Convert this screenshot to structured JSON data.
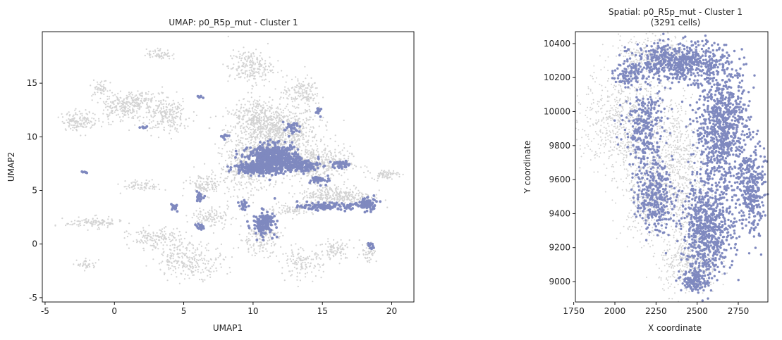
{
  "chart_data": [
    {
      "type": "scatter",
      "title": "UMAP: p0_R5p_mut - Cluster 1",
      "xlabel": "UMAP1",
      "ylabel": "UMAP2",
      "xlim": [
        -5.2,
        21.6
      ],
      "ylim": [
        -5.4,
        19.8
      ],
      "xticks": [
        -5,
        0,
        5,
        10,
        15,
        20
      ],
      "yticks": [
        -5,
        0,
        5,
        10,
        15
      ],
      "grid": false,
      "background_color": "#d3d3d3",
      "highlight_color": "#7f89bf",
      "series": [
        {
          "role": "background",
          "regions": [
            {
              "x": 11.5,
              "y": 10.5,
              "rx": 3.2,
              "ry": 2.6,
              "n": 900
            },
            {
              "x": 9.5,
              "y": 7.0,
              "rx": 2.0,
              "ry": 2.4,
              "n": 320
            },
            {
              "x": 14.5,
              "y": 7.5,
              "rx": 2.5,
              "ry": 1.6,
              "n": 380
            },
            {
              "x": 16.0,
              "y": 4.5,
              "rx": 2.6,
              "ry": 1.0,
              "n": 320
            },
            {
              "x": 19.5,
              "y": 6.5,
              "rx": 1.0,
              "ry": 0.4,
              "n": 70
            },
            {
              "x": 9.8,
              "y": 16.5,
              "rx": 1.6,
              "ry": 1.6,
              "n": 220
            },
            {
              "x": 13.5,
              "y": 14.2,
              "rx": 1.3,
              "ry": 1.3,
              "n": 140
            },
            {
              "x": 3.2,
              "y": 17.7,
              "rx": 0.9,
              "ry": 0.5,
              "n": 60
            },
            {
              "x": -2.5,
              "y": 11.5,
              "rx": 1.3,
              "ry": 0.9,
              "n": 150
            },
            {
              "x": 0.6,
              "y": 12.8,
              "rx": 1.5,
              "ry": 1.4,
              "n": 220
            },
            {
              "x": 3.8,
              "y": 12.0,
              "rx": 1.7,
              "ry": 1.6,
              "n": 230
            },
            {
              "x": 2.0,
              "y": 13.5,
              "rx": 1.2,
              "ry": 0.6,
              "n": 80
            },
            {
              "x": -1.0,
              "y": 14.5,
              "rx": 0.6,
              "ry": 0.8,
              "n": 50
            },
            {
              "x": 6.5,
              "y": 5.5,
              "rx": 1.3,
              "ry": 1.0,
              "n": 120
            },
            {
              "x": 2.0,
              "y": 5.4,
              "rx": 1.4,
              "ry": 0.5,
              "n": 70
            },
            {
              "x": -1.5,
              "y": 2.0,
              "rx": 2.0,
              "ry": 0.5,
              "n": 110
            },
            {
              "x": 3.0,
              "y": 0.5,
              "rx": 2.0,
              "ry": 1.0,
              "n": 160
            },
            {
              "x": 5.5,
              "y": -1.5,
              "rx": 2.5,
              "ry": 1.6,
              "n": 260
            },
            {
              "x": 7.0,
              "y": 2.5,
              "rx": 1.5,
              "ry": 1.0,
              "n": 110
            },
            {
              "x": 10.5,
              "y": 0.5,
              "rx": 1.5,
              "ry": 1.5,
              "n": 160
            },
            {
              "x": 13.5,
              "y": -1.8,
              "rx": 1.5,
              "ry": 1.3,
              "n": 130
            },
            {
              "x": 16.0,
              "y": -0.5,
              "rx": 1.2,
              "ry": 1.0,
              "n": 90
            },
            {
              "x": 18.3,
              "y": -0.7,
              "rx": 0.6,
              "ry": 1.0,
              "n": 50
            },
            {
              "x": 12.8,
              "y": 3.2,
              "rx": 1.7,
              "ry": 0.5,
              "n": 80
            },
            {
              "x": -2.0,
              "y": -1.9,
              "rx": 0.7,
              "ry": 0.5,
              "n": 40
            },
            {
              "x": 10.0,
              "y": 12.0,
              "rx": 1.3,
              "ry": 1.6,
              "n": 150
            }
          ]
        },
        {
          "role": "highlight",
          "regions": [
            {
              "x": 11.5,
              "y": 7.9,
              "rx": 1.8,
              "ry": 1.3,
              "n": 650
            },
            {
              "x": 9.8,
              "y": 7.1,
              "rx": 1.2,
              "ry": 0.5,
              "n": 120
            },
            {
              "x": 13.6,
              "y": 7.3,
              "rx": 1.2,
              "ry": 0.6,
              "n": 110
            },
            {
              "x": 16.3,
              "y": 7.4,
              "rx": 0.6,
              "ry": 0.4,
              "n": 40
            },
            {
              "x": 15.0,
              "y": 6.0,
              "rx": 0.8,
              "ry": 0.4,
              "n": 40
            },
            {
              "x": 15.3,
              "y": 3.5,
              "rx": 1.8,
              "ry": 0.3,
              "n": 130
            },
            {
              "x": 18.2,
              "y": 3.7,
              "rx": 0.7,
              "ry": 0.6,
              "n": 90
            },
            {
              "x": 10.8,
              "y": 1.9,
              "rx": 0.8,
              "ry": 1.1,
              "n": 150
            },
            {
              "x": 9.3,
              "y": 3.6,
              "rx": 0.3,
              "ry": 0.5,
              "n": 25
            },
            {
              "x": 6.1,
              "y": 4.4,
              "rx": 0.3,
              "ry": 0.4,
              "n": 20
            },
            {
              "x": 6.2,
              "y": 1.6,
              "rx": 0.3,
              "ry": 0.3,
              "n": 16
            },
            {
              "x": 4.3,
              "y": 3.5,
              "rx": 0.3,
              "ry": 0.4,
              "n": 18
            },
            {
              "x": 14.7,
              "y": 12.3,
              "rx": 0.3,
              "ry": 0.4,
              "n": 12
            },
            {
              "x": 12.8,
              "y": 10.8,
              "rx": 0.6,
              "ry": 0.5,
              "n": 30
            },
            {
              "x": 18.5,
              "y": -0.2,
              "rx": 0.2,
              "ry": 0.4,
              "n": 12
            },
            {
              "x": -2.1,
              "y": 6.7,
              "rx": 0.2,
              "ry": 0.1,
              "n": 6
            },
            {
              "x": 2.1,
              "y": 10.9,
              "rx": 0.3,
              "ry": 0.1,
              "n": 8
            },
            {
              "x": 6.2,
              "y": 13.7,
              "rx": 0.3,
              "ry": 0.1,
              "n": 6
            },
            {
              "x": 7.9,
              "y": 10.1,
              "rx": 0.3,
              "ry": 0.3,
              "n": 10
            }
          ]
        }
      ]
    },
    {
      "type": "scatter",
      "title": "Spatial: p0_R5p_mut - Cluster 1",
      "subtitle": "(3291 cells)",
      "xlabel": "X coordinate",
      "ylabel": "Y coordinate",
      "xlim": [
        1760,
        2930
      ],
      "ylim": [
        8880,
        10470
      ],
      "xticks": [
        1750,
        2000,
        2250,
        2500,
        2750
      ],
      "yticks": [
        9000,
        9200,
        9400,
        9600,
        9800,
        10000,
        10200,
        10400
      ],
      "grid": false,
      "background_color": "#d3d3d3",
      "highlight_color": "#7f89bf",
      "series": [
        {
          "role": "background",
          "regions": [
            {
              "x": 2050,
              "y": 9950,
              "rx": 240,
              "ry": 330,
              "n": 700
            },
            {
              "x": 2380,
              "y": 9650,
              "rx": 170,
              "ry": 460,
              "n": 700
            },
            {
              "x": 2250,
              "y": 10350,
              "rx": 220,
              "ry": 100,
              "n": 250
            },
            {
              "x": 2450,
              "y": 9100,
              "rx": 180,
              "ry": 170,
              "n": 350
            },
            {
              "x": 2180,
              "y": 9500,
              "rx": 140,
              "ry": 250,
              "n": 300
            }
          ]
        },
        {
          "role": "highlight",
          "regions": [
            {
              "x": 2400,
              "y": 10290,
              "rx": 300,
              "ry": 110,
              "n": 620
            },
            {
              "x": 2650,
              "y": 9900,
              "rx": 160,
              "ry": 360,
              "n": 820
            },
            {
              "x": 2560,
              "y": 9300,
              "rx": 160,
              "ry": 280,
              "n": 720
            },
            {
              "x": 2830,
              "y": 9550,
              "rx": 80,
              "ry": 280,
              "n": 320
            },
            {
              "x": 2180,
              "y": 9900,
              "rx": 120,
              "ry": 260,
              "n": 300
            },
            {
              "x": 2240,
              "y": 9500,
              "rx": 110,
              "ry": 200,
              "n": 300
            },
            {
              "x": 2080,
              "y": 10220,
              "rx": 70,
              "ry": 70,
              "n": 80
            },
            {
              "x": 2490,
              "y": 9000,
              "rx": 80,
              "ry": 60,
              "n": 130
            }
          ]
        }
      ]
    }
  ]
}
